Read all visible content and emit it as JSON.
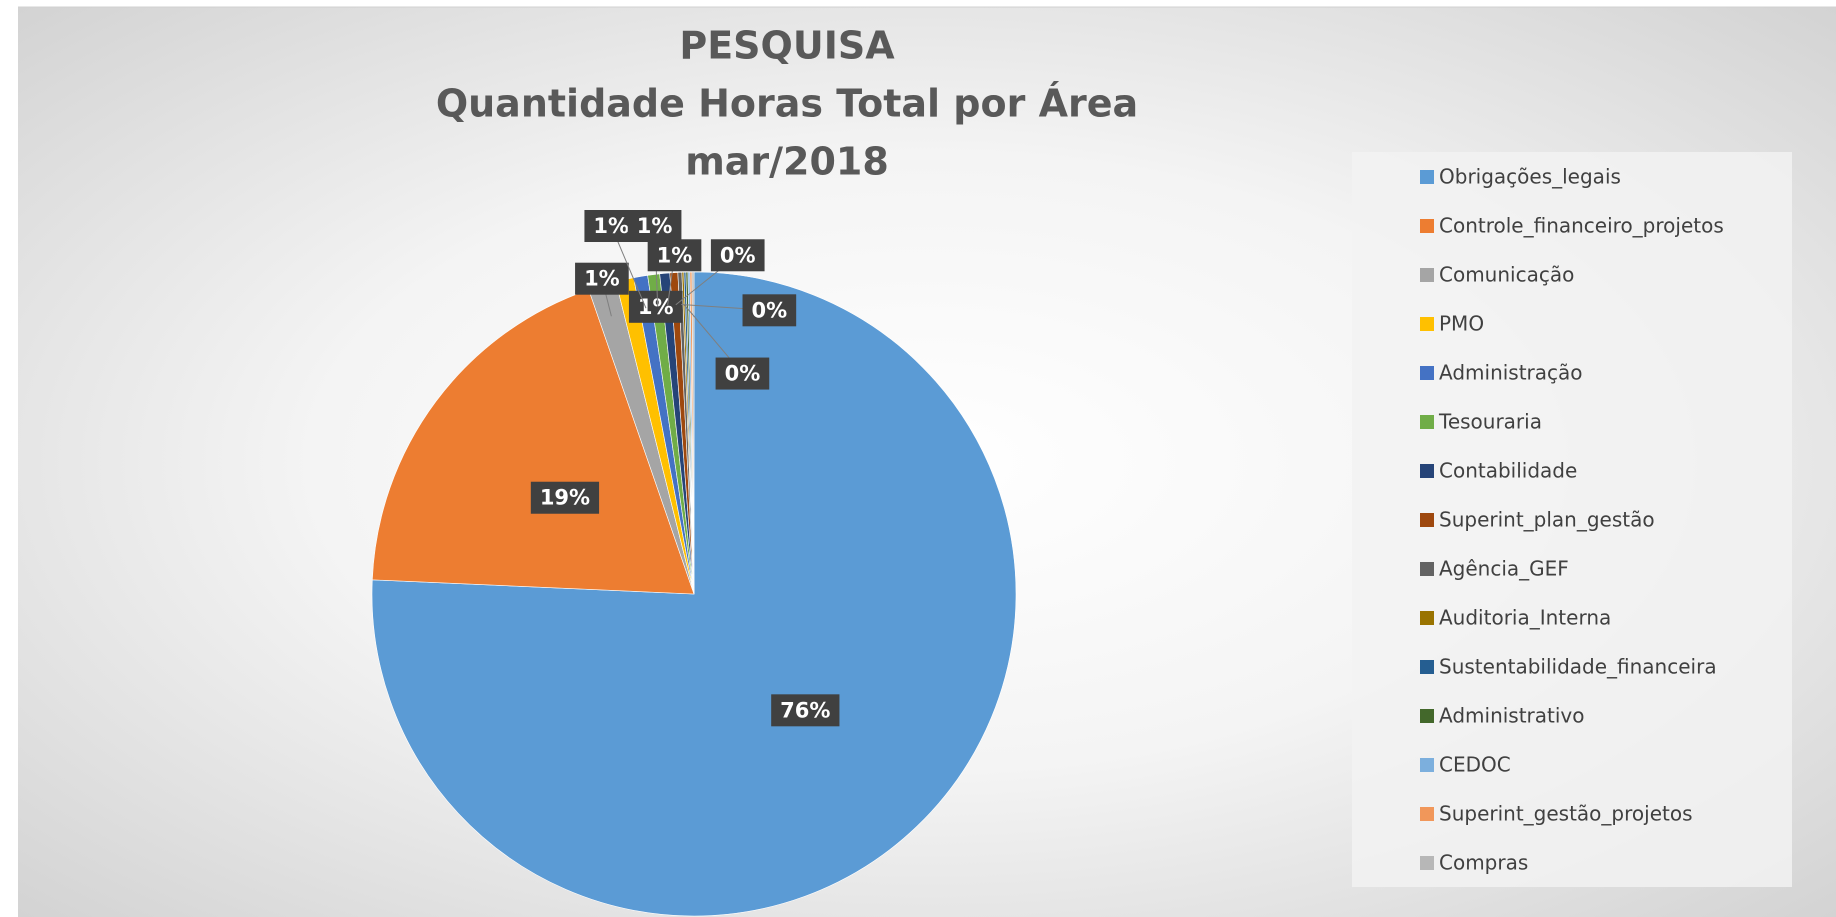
{
  "chart_data": {
    "type": "pie",
    "title": [
      "PESQUISA",
      "Quantidade Horas Total por Área",
      "mar/2018"
    ],
    "categories": [
      "Obrigações_legais",
      "Controle_financeiro_projetos",
      "Comunicação",
      "PMO",
      "Administração",
      "Tesouraria",
      "Contabilidade",
      "Superint_plan_gestão",
      "Agência_GEF",
      "Auditoria_Interna",
      "Sustentabilidade_financeira",
      "Administrativo",
      "CEDOC",
      "Superint_gestão_projetos",
      "Compras"
    ],
    "values": [
      75.7,
      19,
      1.4,
      0.9,
      0.7,
      0.6,
      0.5,
      0.4,
      0.2,
      0.1,
      0.1,
      0.1,
      0.1,
      0.1,
      0.1
    ],
    "value_labels": [
      "76%",
      "19%",
      "1%",
      "1%",
      "1%",
      "1%",
      "1%",
      "0%",
      "0%",
      "0%",
      null,
      null,
      null,
      null,
      null
    ],
    "colors": [
      "#5b9bd5",
      "#ed7d31",
      "#a5a5a5",
      "#ffc000",
      "#4472c4",
      "#70ad47",
      "#264478",
      "#9e480e",
      "#636363",
      "#997300",
      "#255e91",
      "#43682b",
      "#7cafdd",
      "#f1975a",
      "#b7b7b7"
    ],
    "legend": "right"
  }
}
